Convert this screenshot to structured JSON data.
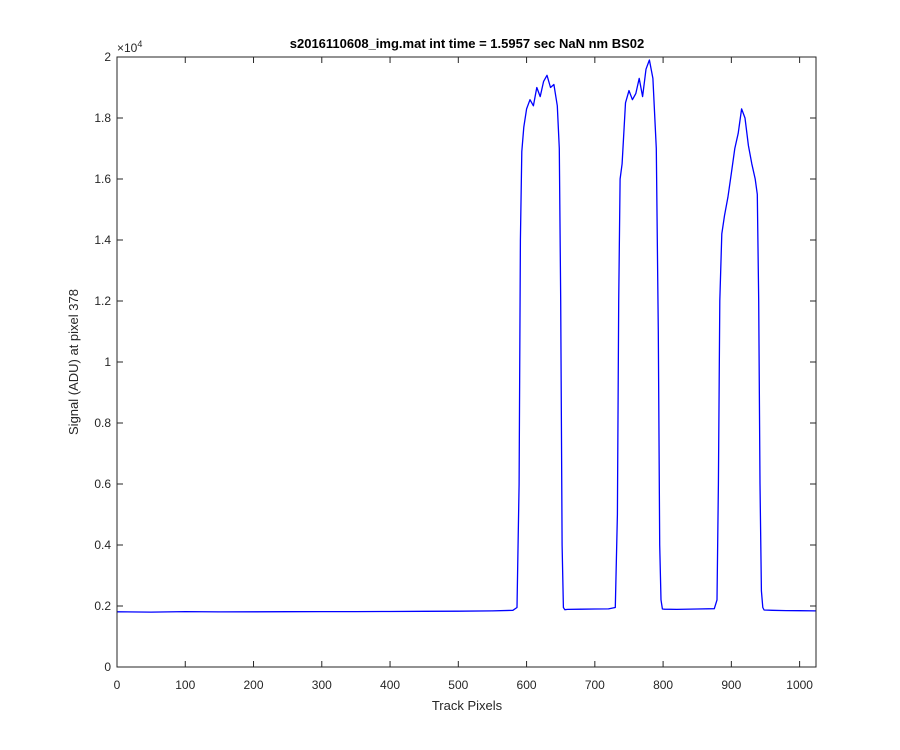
{
  "chart_data": {
    "type": "line",
    "title": "s2016110608_img.mat int time = 1.5957 sec  NaN nm BS02",
    "xlabel": "Track Pixels",
    "ylabel": "Signal (ADU) at pixel 378",
    "xlim": [
      0,
      1024
    ],
    "ylim": [
      0,
      20000
    ],
    "xticks": [
      0,
      100,
      200,
      300,
      400,
      500,
      600,
      700,
      800,
      900,
      1000
    ],
    "yticks": [
      0,
      2000,
      4000,
      6000,
      8000,
      10000,
      12000,
      14000,
      16000,
      18000,
      20000
    ],
    "xtick_labels": [
      "0",
      "100",
      "200",
      "300",
      "400",
      "500",
      "600",
      "700",
      "800",
      "900",
      "1000"
    ],
    "ytick_labels": [
      "0",
      "0.2",
      "0.4",
      "0.6",
      "0.8",
      "1",
      "1.2",
      "1.4",
      "1.6",
      "1.8",
      "2"
    ],
    "y_exponent_base": "×10",
    "y_exponent_power": "4",
    "grid": false,
    "series": [
      {
        "color": "#0000ff",
        "x": [
          0,
          50,
          100,
          150,
          200,
          250,
          300,
          350,
          400,
          450,
          500,
          550,
          580,
          586,
          589,
          591,
          593,
          596,
          600,
          605,
          610,
          615,
          620,
          625,
          630,
          635,
          640,
          645,
          648,
          650,
          652,
          654,
          656,
          660,
          680,
          700,
          720,
          730,
          733,
          735,
          737,
          740,
          745,
          750,
          755,
          760,
          765,
          770,
          775,
          780,
          785,
          790,
          793,
          795,
          797,
          799,
          802,
          820,
          850,
          875,
          879,
          881,
          883,
          886,
          890,
          895,
          900,
          905,
          910,
          915,
          920,
          925,
          930,
          935,
          938,
          940,
          942,
          944,
          946,
          948,
          960,
          980,
          1000,
          1024
        ],
        "y": [
          1810,
          1800,
          1815,
          1805,
          1810,
          1812,
          1815,
          1818,
          1820,
          1825,
          1830,
          1840,
          1860,
          1950,
          6000,
          14000,
          16900,
          17700,
          18300,
          18600,
          18400,
          19000,
          18700,
          19200,
          19400,
          19000,
          19100,
          18400,
          17000,
          12000,
          4000,
          1950,
          1880,
          1890,
          1895,
          1900,
          1905,
          1950,
          5000,
          12000,
          16000,
          16500,
          18500,
          18900,
          18600,
          18800,
          19300,
          18700,
          19600,
          19900,
          19300,
          17000,
          11000,
          4000,
          2200,
          1900,
          1895,
          1890,
          1900,
          1910,
          2200,
          6000,
          12000,
          14200,
          14800,
          15400,
          16200,
          17000,
          17500,
          18300,
          18000,
          17100,
          16500,
          16000,
          15500,
          12000,
          6000,
          2500,
          1950,
          1870,
          1860,
          1850,
          1845,
          1840
        ]
      }
    ]
  }
}
